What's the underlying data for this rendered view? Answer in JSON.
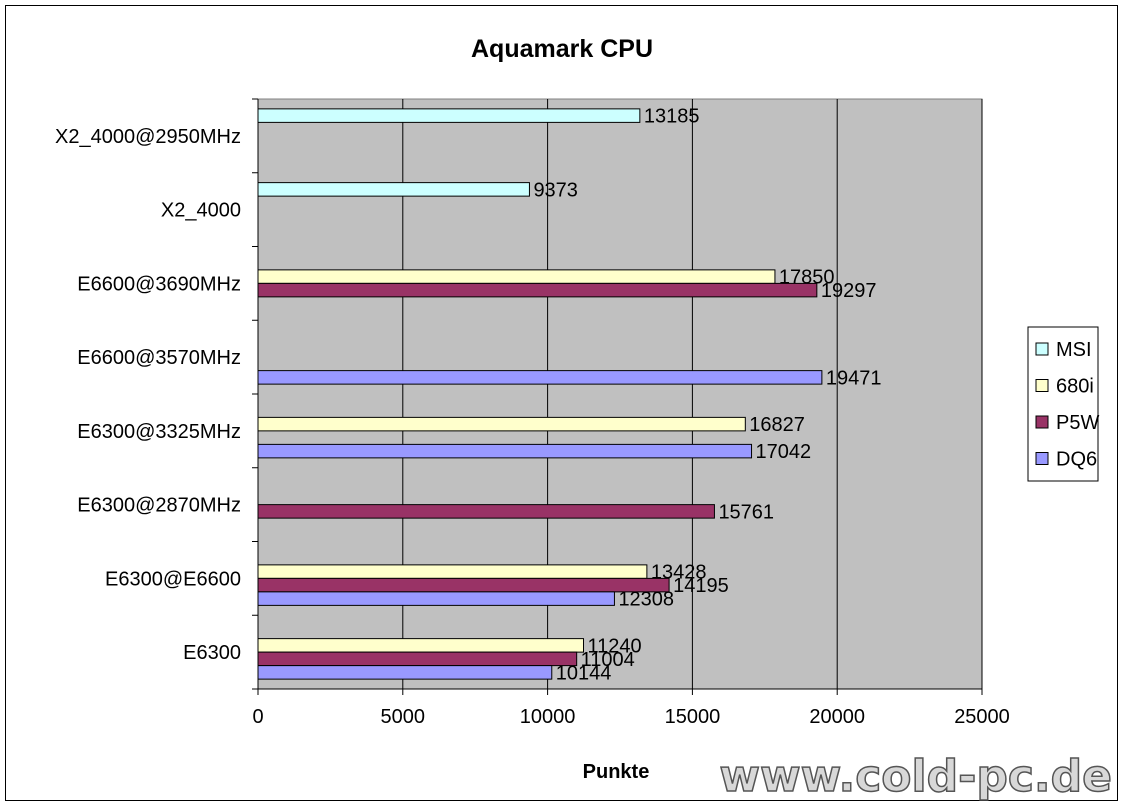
{
  "chart_data": {
    "type": "bar",
    "orientation": "horizontal",
    "title": "Aquamark CPU",
    "xlabel": "Punkte",
    "ylabel": "",
    "xlim": [
      0,
      25000
    ],
    "xticks": [
      "0",
      "5000",
      "10000",
      "15000",
      "20000",
      "25000"
    ],
    "grid": true,
    "legend_position": "right",
    "categories": [
      "X2_4000@2950MHz",
      "X2_4000",
      "E6600@3690MHz",
      "E6600@3570MHz",
      "E6300@3325MHz",
      "E6300@2870MHz",
      "E6300@E6600",
      "E6300"
    ],
    "series": [
      {
        "name": "MSI",
        "color": "#ccffff",
        "values": [
          13185,
          9373,
          null,
          null,
          null,
          null,
          null,
          null
        ]
      },
      {
        "name": "680i",
        "color": "#ffffcc",
        "values": [
          null,
          null,
          17850,
          null,
          16827,
          null,
          13428,
          11240
        ]
      },
      {
        "name": "P5W",
        "color": "#993366",
        "values": [
          null,
          null,
          19297,
          null,
          null,
          15761,
          14195,
          11004
        ]
      },
      {
        "name": "DQ6",
        "color": "#9999ff",
        "values": [
          null,
          null,
          null,
          19471,
          17042,
          null,
          12308,
          10144
        ]
      }
    ]
  },
  "watermark": "www.cold-pc.de"
}
